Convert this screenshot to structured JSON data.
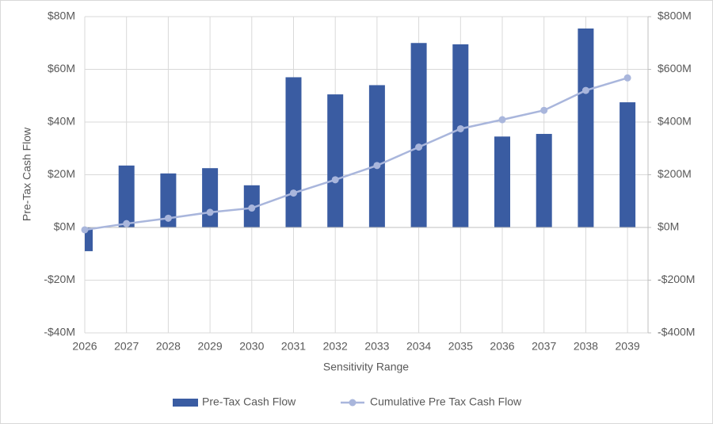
{
  "chart_data": {
    "type": "bar",
    "x_label": "Sensitivity Range",
    "y_label": "Pre-Tax Cash Flow",
    "categories": [
      "2026",
      "2027",
      "2028",
      "2029",
      "2030",
      "2031",
      "2032",
      "2033",
      "2034",
      "2035",
      "2036",
      "2037",
      "2038",
      "2039"
    ],
    "series": [
      {
        "name": "Pre-Tax Cash Flow",
        "type": "bar",
        "color": "#3a5ca2",
        "axis": "y",
        "values": [
          -9,
          23.5,
          20.5,
          22.5,
          16,
          57,
          50.5,
          54,
          70,
          69.5,
          34.5,
          35.5,
          75.5,
          47.5
        ]
      },
      {
        "name": "Cumulative Pre Tax Cash Flow",
        "type": "line",
        "color": "#a9b6dc",
        "axis": "y2",
        "values": [
          -9,
          14.5,
          35,
          57.5,
          73.5,
          130.5,
          181,
          235,
          305,
          374.5,
          409,
          444.5,
          520,
          567.5
        ]
      }
    ],
    "ylim": [
      -40,
      80
    ],
    "yticks": [
      {
        "value": -40,
        "label": "-$40M"
      },
      {
        "value": -20,
        "label": "-$20M"
      },
      {
        "value": 0,
        "label": "$0M"
      },
      {
        "value": 20,
        "label": "$20M"
      },
      {
        "value": 40,
        "label": "$40M"
      },
      {
        "value": 60,
        "label": "$60M"
      },
      {
        "value": 80,
        "label": "$80M"
      }
    ],
    "y2lim": [
      -400,
      800
    ],
    "y2ticks": [
      {
        "value": -400,
        "label": "-$400M"
      },
      {
        "value": -200,
        "label": "-$200M"
      },
      {
        "value": 0,
        "label": "$0M"
      },
      {
        "value": 200,
        "label": "$200M"
      },
      {
        "value": 400,
        "label": "$400M"
      },
      {
        "value": 600,
        "label": "$600M"
      },
      {
        "value": 800,
        "label": "$800M"
      }
    ],
    "grid": true,
    "legend": "bottom"
  }
}
